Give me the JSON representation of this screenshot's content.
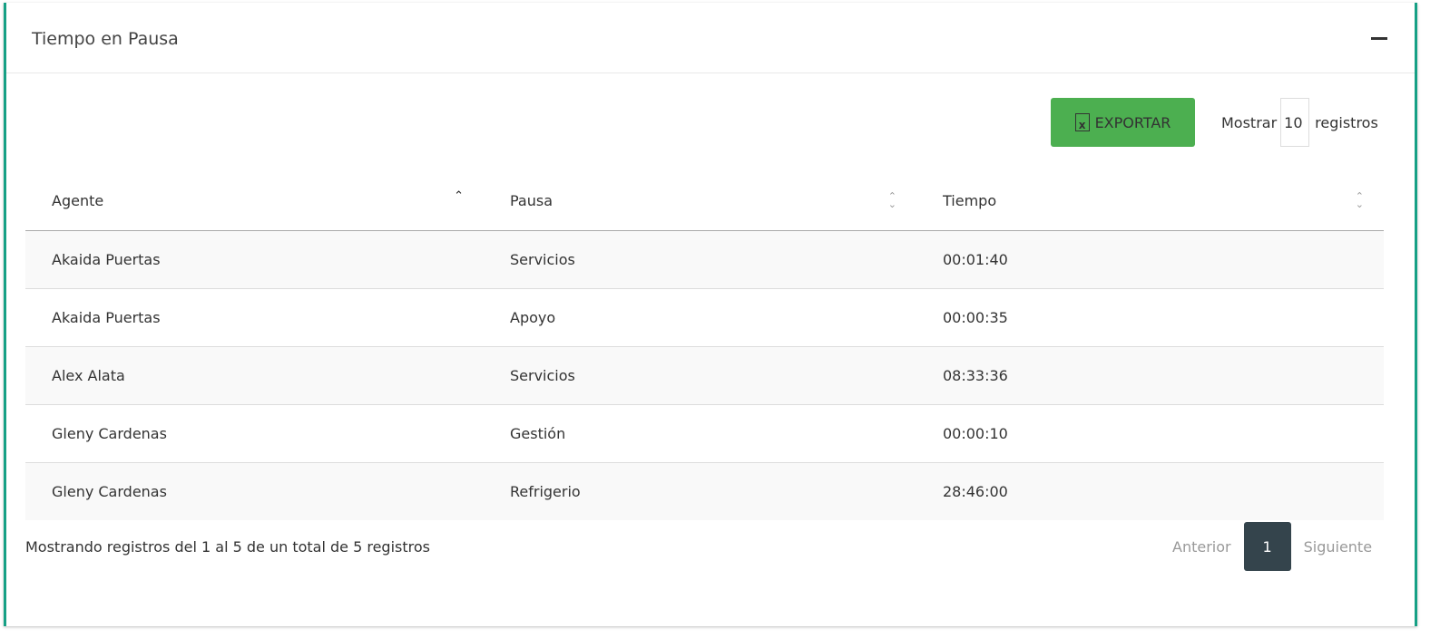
{
  "panel": {
    "title": "Tiempo en Pausa"
  },
  "toolbar": {
    "export_label": "EXPORTAR",
    "show_prefix": "Mostrar",
    "page_size": "10",
    "show_suffix": "registros"
  },
  "table": {
    "headers": [
      "Agente",
      "Pausa",
      "Tiempo"
    ],
    "rows": [
      [
        "Akaida Puertas",
        "Servicios",
        "00:01:40"
      ],
      [
        "Akaida Puertas",
        "Apoyo",
        "00:00:35"
      ],
      [
        "Alex Alata",
        "Servicios",
        "08:33:36"
      ],
      [
        "Gleny Cardenas",
        "Gestión",
        "00:00:10"
      ],
      [
        "Gleny Cardenas",
        "Refrigerio",
        "28:46:00"
      ]
    ]
  },
  "footer": {
    "info": "Mostrando registros del 1 al 5 de un total de 5 registros",
    "prev": "Anterior",
    "page": "1",
    "next": "Siguiente"
  },
  "colors": {
    "accent": "#16a085",
    "export": "#4caf50",
    "page_active": "#34444c"
  }
}
